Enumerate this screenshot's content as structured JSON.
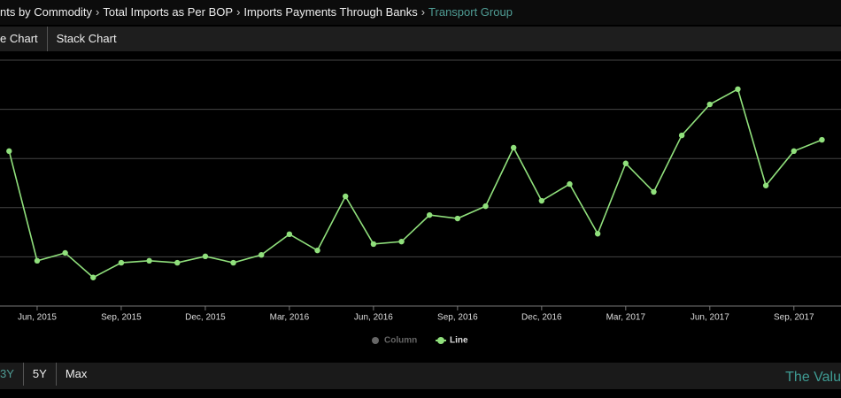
{
  "breadcrumb": [
    "nts by Commodity",
    "Total Imports as Per BOP",
    "Imports Payments Through Banks",
    "Transport Group"
  ],
  "tabs": [
    "e Chart",
    "Stack Chart"
  ],
  "ranges": [
    "3Y",
    "5Y",
    "Max"
  ],
  "brand": "The Valu",
  "chart_data": {
    "type": "line",
    "categories": [
      null,
      "Jun, 2015",
      null,
      null,
      "Sep, 2015",
      null,
      null,
      "Dec, 2015",
      null,
      null,
      "Mar, 2016",
      null,
      null,
      "Jun, 2016",
      null,
      null,
      "Sep, 2016",
      null,
      null,
      "Dec, 2016",
      null,
      null,
      "Mar, 2017",
      null,
      null,
      "Jun, 2017",
      null,
      null,
      "Sep, 2017",
      null
    ],
    "series": [
      {
        "name": "Column",
        "color": "#666666",
        "values": null,
        "hidden": true
      },
      {
        "name": "Line",
        "color": "#90e07c",
        "values": [
          3.15,
          0.92,
          1.08,
          0.58,
          0.88,
          0.92,
          0.88,
          1.01,
          0.88,
          1.04,
          1.46,
          1.13,
          2.23,
          1.26,
          1.31,
          1.85,
          1.78,
          2.03,
          3.22,
          2.14,
          2.48,
          1.47,
          2.9,
          2.32,
          3.47,
          4.1,
          4.41,
          2.45,
          3.15,
          3.38
        ]
      }
    ],
    "ylim": [
      0,
      5
    ],
    "ygrid": [
      0,
      1,
      2,
      3,
      4,
      5
    ],
    "grid": true,
    "legend": "bottom"
  }
}
